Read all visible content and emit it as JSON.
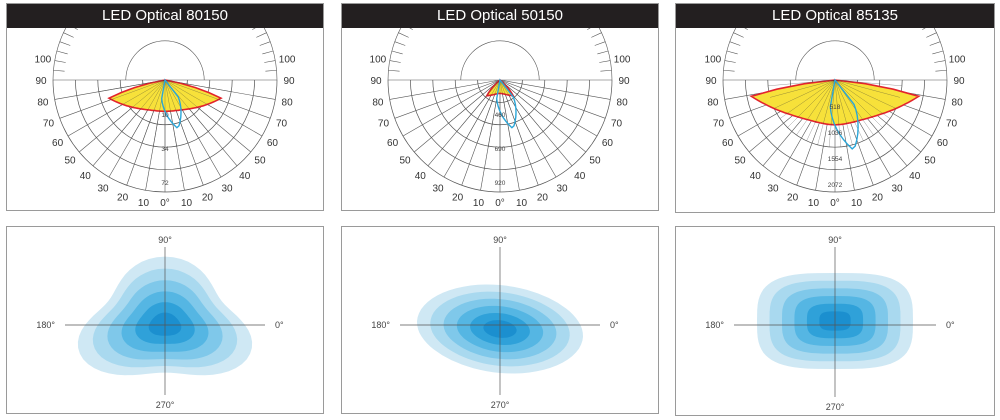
{
  "panels": [
    {
      "title": "LED Optical 80150",
      "scale_labels": [
        "10",
        "34",
        "72"
      ],
      "curve_halfwidth_deg": 80,
      "heatmap_shape": "trefoil"
    },
    {
      "title": "LED Optical 50150",
      "scale_labels": [
        "460",
        "690",
        "920"
      ],
      "curve_halfwidth_deg": 50,
      "heatmap_shape": "oval"
    },
    {
      "title": "LED Optical 85135",
      "scale_labels": [
        "518",
        "1036",
        "1554",
        "2072"
      ],
      "curve_halfwidth_deg": 85,
      "heatmap_shape": "rounded"
    }
  ],
  "polar": {
    "left_angles": [
      "100",
      "90",
      "80",
      "70",
      "60",
      "50",
      "40",
      "30",
      "20",
      "10"
    ],
    "right_angles": [
      "100",
      "90",
      "80",
      "70",
      "60",
      "50",
      "40",
      "30",
      "20",
      "10"
    ],
    "zero_label": "0°"
  },
  "heatmap_axes": {
    "top": "90°",
    "left": "180°",
    "right": "0°",
    "bottom": "270°"
  },
  "colors": {
    "curve_fill": "#f7e13a",
    "curve_stroke": "#e3232c",
    "curve2_stroke": "#2aa6d8",
    "grid": "#555555",
    "heat": [
      "#cfe8f4",
      "#a9d9ef",
      "#7fc8ea",
      "#55b6e3",
      "#2fa1d9",
      "#1b8fcf"
    ]
  }
}
